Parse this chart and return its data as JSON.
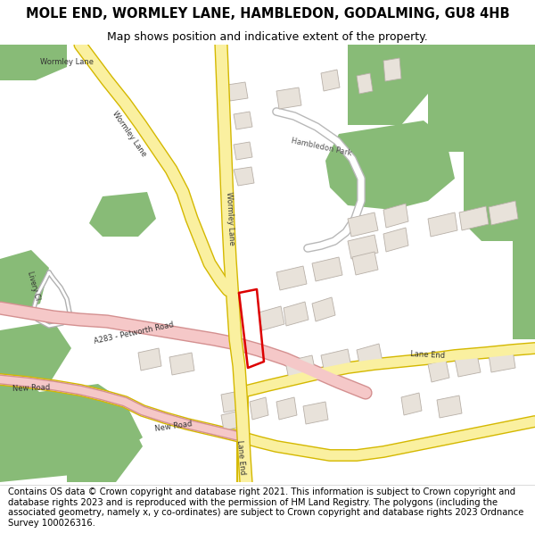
{
  "title": "MOLE END, WORMLEY LANE, HAMBLEDON, GODALMING, GU8 4HB",
  "subtitle": "Map shows position and indicative extent of the property.",
  "footer": "Contains OS data © Crown copyright and database right 2021. This information is subject to Crown copyright and database rights 2023 and is reproduced with the permission of HM Land Registry. The polygons (including the associated geometry, namely x, y co-ordinates) are subject to Crown copyright and database rights 2023 Ordnance Survey 100026316.",
  "bg_color": "#ffffff",
  "map_bg": "#f2ede8",
  "road_yellow": "#faf0a0",
  "road_yellow_border": "#d4b800",
  "road_pink": "#f5c8c8",
  "road_pink_border": "#d49090",
  "green_color": "#88bb77",
  "building_color": "#e8e2da",
  "building_outline": "#b8b0a8",
  "water_color": "#b8dde8",
  "plot_color": "#dd0000",
  "title_fontsize": 10.5,
  "subtitle_fontsize": 9,
  "footer_fontsize": 7.2
}
